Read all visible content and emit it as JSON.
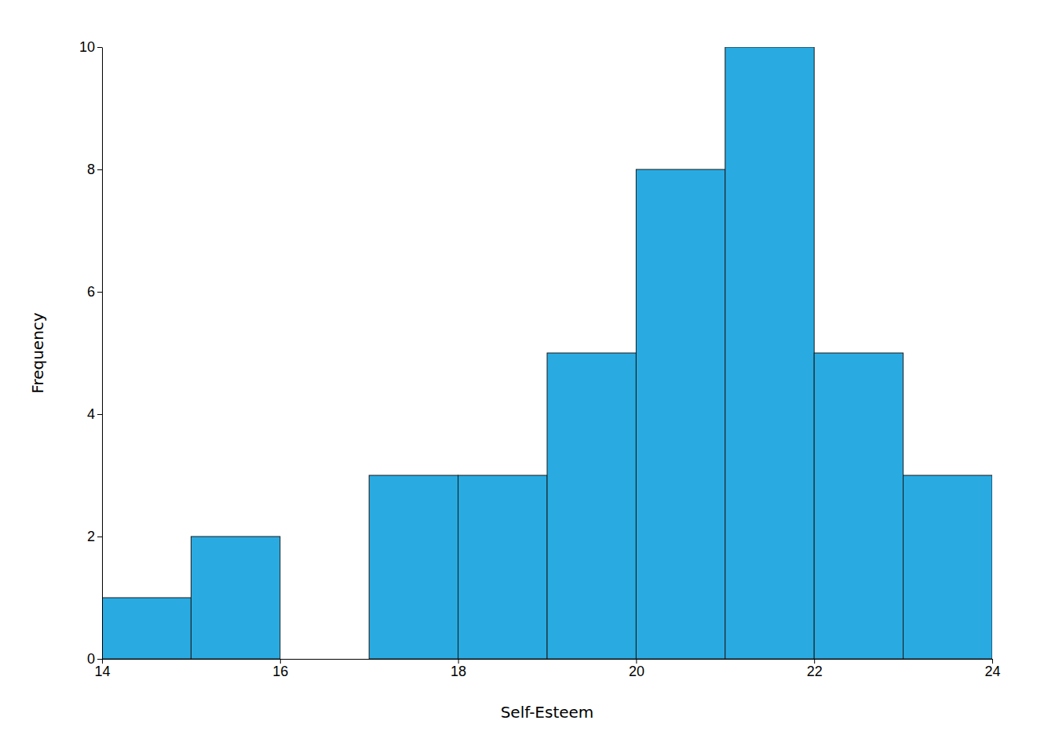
{
  "chart_data": {
    "type": "histogram",
    "bins": [
      14,
      15,
      16,
      17,
      18,
      19,
      20,
      21,
      22,
      23,
      24
    ],
    "values": [
      1,
      2,
      0,
      3,
      3,
      5,
      8,
      10,
      5,
      3
    ],
    "color": "#29ABE2",
    "xlabel": "Self-Esteem",
    "ylabel": "Frequency",
    "xlim": [
      14,
      24
    ],
    "ylim": [
      0,
      10
    ],
    "xticks": [
      14,
      16,
      18,
      20,
      22,
      24
    ],
    "yticks": [
      0,
      2,
      4,
      6,
      8,
      10
    ],
    "grid": false
  }
}
